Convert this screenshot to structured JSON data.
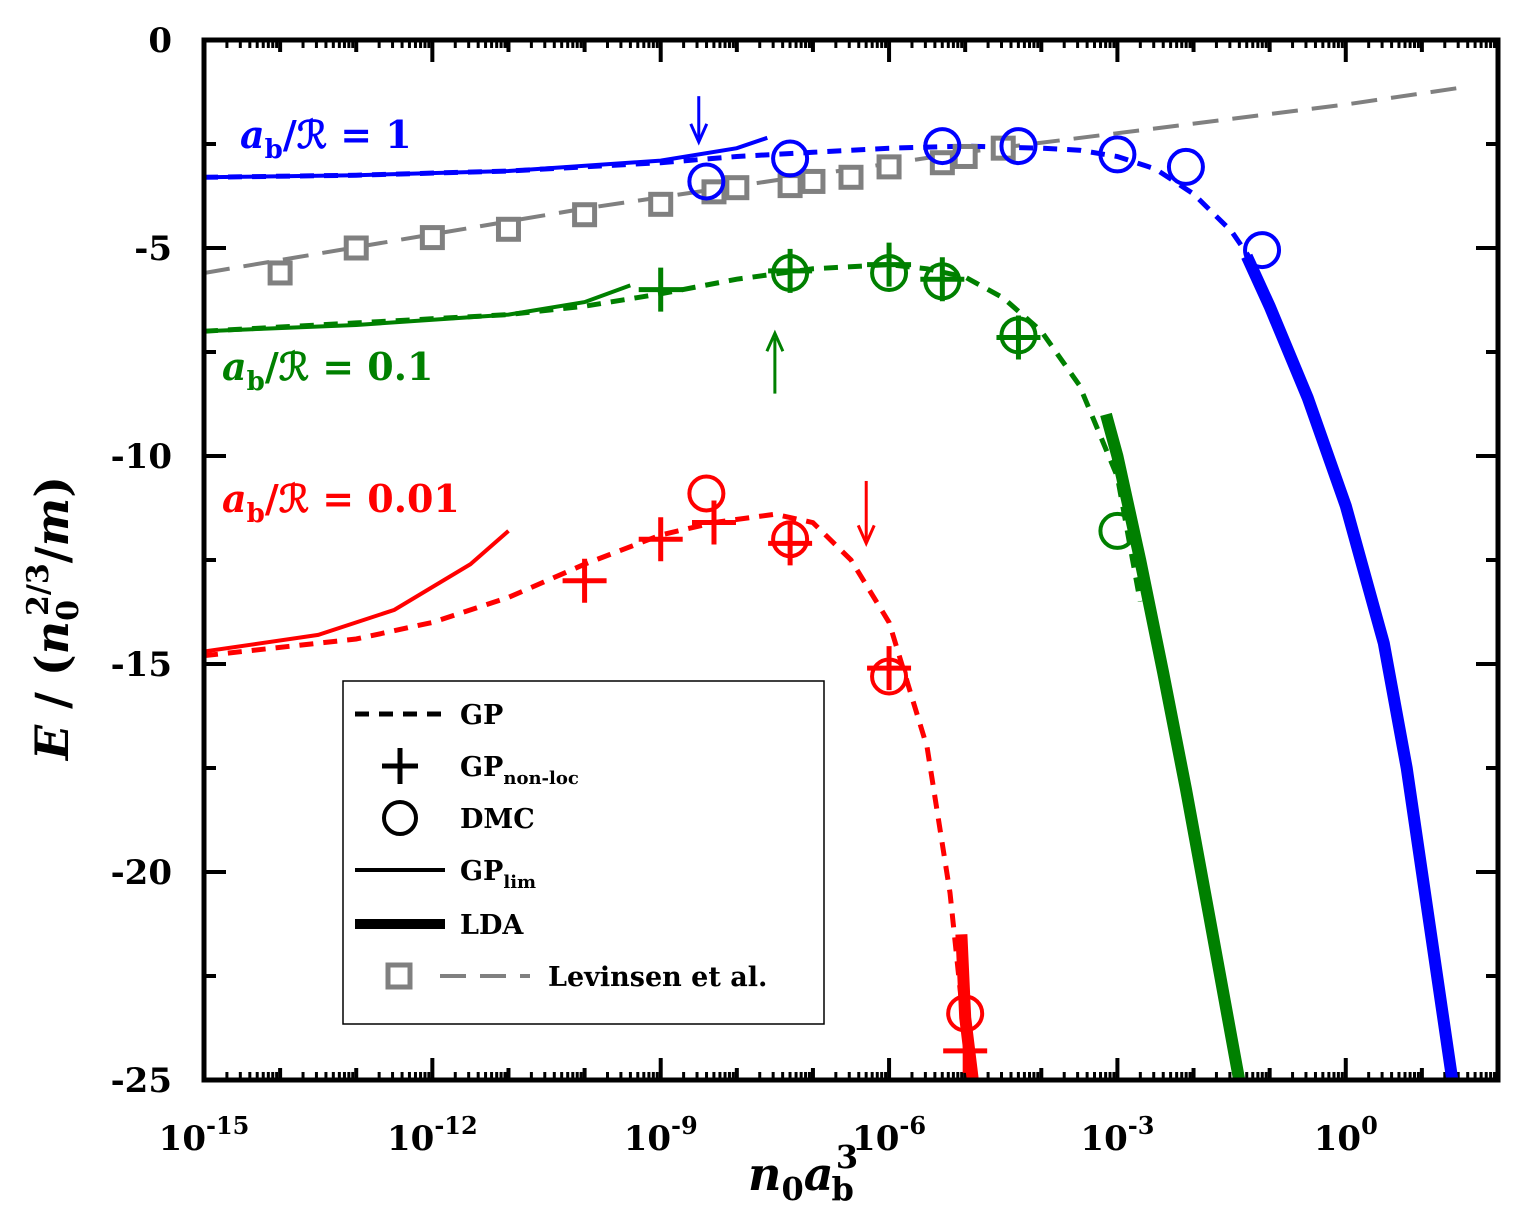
{
  "chart_data": {
    "type": "line",
    "xscale": "log",
    "xlim": [
      1e-15,
      100
    ],
    "ylim": [
      -25,
      0
    ],
    "xlabel": "n0 ab^3",
    "ylabel": "E / (n0^(2/3)/m)",
    "x_ticks": [
      {
        "base": "10",
        "exp": "-15",
        "value": 1e-15
      },
      {
        "base": "10",
        "exp": "-12",
        "value": 1e-12
      },
      {
        "base": "10",
        "exp": "-9",
        "value": 1e-09
      },
      {
        "base": "10",
        "exp": "-6",
        "value": 1e-06
      },
      {
        "base": "10",
        "exp": "-3",
        "value": 0.001
      },
      {
        "base": "10",
        "exp": "0",
        "value": 1
      }
    ],
    "y_ticks": [
      {
        "label": "0",
        "value": 0
      },
      {
        "label": "-5",
        "value": -5
      },
      {
        "label": "-10",
        "value": -10
      },
      {
        "label": "-15",
        "value": -15
      },
      {
        "label": "-20",
        "value": -20
      },
      {
        "label": "-25",
        "value": -25
      }
    ],
    "series_labels": [
      {
        "prefix": "a",
        "sub": "b",
        "rest": "/ℛ = 1",
        "color": "#0000ff"
      },
      {
        "prefix": "a",
        "sub": "b",
        "rest": "/ℛ = 0.1",
        "color": "#008000"
      },
      {
        "prefix": "a",
        "sub": "b",
        "rest": "/ℛ = 0.01",
        "color": "#ff0000"
      }
    ],
    "groups": [
      {
        "color": "#0000ff",
        "gp": [
          [
            -15,
            -3.3
          ],
          [
            -13,
            -3.25
          ],
          [
            -11,
            -3.15
          ],
          [
            -9,
            -2.95
          ],
          [
            -8,
            -2.8
          ],
          [
            -7,
            -2.7
          ],
          [
            -6,
            -2.6
          ],
          [
            -5,
            -2.55
          ],
          [
            -4,
            -2.6
          ],
          [
            -3.5,
            -2.65
          ],
          [
            -3,
            -2.8
          ],
          [
            -2.5,
            -3.1
          ],
          [
            -2,
            -3.7
          ],
          [
            -1.5,
            -4.6
          ],
          [
            -1.2,
            -5.4
          ]
        ],
        "gp_lim": [
          [
            -15,
            -3.3
          ],
          [
            -13,
            -3.25
          ],
          [
            -11,
            -3.15
          ],
          [
            -9,
            -2.9
          ],
          [
            -8,
            -2.6
          ],
          [
            -7.6,
            -2.35
          ]
        ],
        "lda": [
          [
            -1.3,
            -5.2
          ],
          [
            -1,
            -6.4
          ],
          [
            -0.5,
            -8.6
          ],
          [
            0,
            -11.2
          ],
          [
            0.5,
            -14.5
          ],
          [
            0.8,
            -17.5
          ],
          [
            1,
            -20
          ],
          [
            1.2,
            -22.5
          ],
          [
            1.4,
            -25
          ]
        ],
        "dmc": [
          [
            -8.4,
            -3.4
          ],
          [
            -7.3,
            -2.85
          ],
          [
            -5.3,
            -2.55
          ],
          [
            -4.3,
            -2.55
          ],
          [
            -3,
            -2.75
          ],
          [
            -2.1,
            -3.05
          ],
          [
            -1.1,
            -5.05
          ]
        ],
        "gp_nonloc": [],
        "arrow": {
          "x": -8.5,
          "y_from": -1.35,
          "y_to": -2.45
        }
      },
      {
        "color": "#008000",
        "gp": [
          [
            -15,
            -7
          ],
          [
            -13,
            -6.8
          ],
          [
            -11,
            -6.6
          ],
          [
            -10,
            -6.4
          ],
          [
            -9,
            -6.1
          ],
          [
            -8,
            -5.75
          ],
          [
            -7,
            -5.5
          ],
          [
            -6,
            -5.4
          ],
          [
            -5.5,
            -5.5
          ],
          [
            -5,
            -5.7
          ],
          [
            -4.5,
            -6.2
          ],
          [
            -4,
            -7
          ],
          [
            -3.5,
            -8.3
          ],
          [
            -3,
            -10.5
          ],
          [
            -2.8,
            -12.5
          ],
          [
            -2.7,
            -13.5
          ]
        ],
        "gp_lim": [
          [
            -15,
            -7
          ],
          [
            -13,
            -6.85
          ],
          [
            -11,
            -6.6
          ],
          [
            -10,
            -6.3
          ],
          [
            -9.4,
            -5.9
          ]
        ],
        "lda": [
          [
            -3.15,
            -9
          ],
          [
            -3,
            -10
          ],
          [
            -2.7,
            -12.5
          ],
          [
            -2.4,
            -15.2
          ],
          [
            -2.1,
            -18
          ],
          [
            -1.8,
            -21
          ],
          [
            -1.5,
            -24
          ],
          [
            -1.4,
            -25
          ]
        ],
        "dmc": [
          [
            -7.3,
            -5.6
          ],
          [
            -6,
            -5.6
          ],
          [
            -5.3,
            -5.8
          ],
          [
            -4.3,
            -7.1
          ],
          [
            -3,
            -11.8
          ]
        ],
        "gp_nonloc": [
          [
            -9,
            -6
          ],
          [
            -7.3,
            -5.55
          ],
          [
            -6,
            -5.4
          ],
          [
            -5.3,
            -5.75
          ],
          [
            -4.3,
            -7.15
          ]
        ],
        "arrow": {
          "x": -7.5,
          "y_from": -8.5,
          "y_to": -7.05
        }
      },
      {
        "color": "#ff0000",
        "gp": [
          [
            -15,
            -14.8
          ],
          [
            -13,
            -14.4
          ],
          [
            -12,
            -14
          ],
          [
            -11,
            -13.4
          ],
          [
            -10,
            -12.6
          ],
          [
            -9,
            -11.9
          ],
          [
            -8.3,
            -11.6
          ],
          [
            -7.5,
            -11.4
          ],
          [
            -7,
            -11.6
          ],
          [
            -6.5,
            -12.5
          ],
          [
            -6,
            -14
          ],
          [
            -5.5,
            -17
          ],
          [
            -5.2,
            -20.5
          ],
          [
            -5,
            -24
          ]
        ],
        "gp_lim": [
          [
            -15,
            -14.7
          ],
          [
            -13.5,
            -14.3
          ],
          [
            -12.5,
            -13.7
          ],
          [
            -11.5,
            -12.6
          ],
          [
            -11,
            -11.8
          ]
        ],
        "lda": [
          [
            -5.05,
            -21.5
          ],
          [
            -5,
            -23.5
          ],
          [
            -4.9,
            -25
          ]
        ],
        "dmc": [
          [
            -8.4,
            -10.9
          ],
          [
            -7.3,
            -12
          ],
          [
            -6,
            -15.3
          ],
          [
            -5,
            -23.4
          ]
        ],
        "gp_nonloc": [
          [
            -10,
            -13
          ],
          [
            -9,
            -12
          ],
          [
            -8.3,
            -11.6
          ],
          [
            -7.3,
            -12.1
          ],
          [
            -6,
            -15.1
          ],
          [
            -5,
            -24.3
          ]
        ],
        "arrow": {
          "x": -6.3,
          "y_from": -10.6,
          "y_to": -12.1
        }
      }
    ],
    "levinsen": {
      "color": "#808080",
      "line": [
        [
          -15,
          -5.6
        ],
        [
          -10,
          -4.05
        ],
        [
          -5,
          -2.7
        ],
        [
          0,
          -1.55
        ],
        [
          1.5,
          -1.15
        ]
      ],
      "points": [
        [
          -14,
          -5.6
        ],
        [
          -13,
          -5
        ],
        [
          -12,
          -4.75
        ],
        [
          -11,
          -4.55
        ],
        [
          -10,
          -4.2
        ],
        [
          -9,
          -3.95
        ],
        [
          -8.3,
          -3.65
        ],
        [
          -8,
          -3.55
        ],
        [
          -7.3,
          -3.5
        ],
        [
          -7,
          -3.4
        ],
        [
          -6.5,
          -3.3
        ],
        [
          -6,
          -3.05
        ],
        [
          -5.3,
          -2.95
        ],
        [
          -5,
          -2.8
        ],
        [
          -4.5,
          -2.6
        ]
      ]
    },
    "legend": {
      "position": "lower-left",
      "entries": [
        {
          "main": "GP",
          "sub": ""
        },
        {
          "main": "GP",
          "sub": "non-loc"
        },
        {
          "main": "DMC",
          "sub": ""
        },
        {
          "main": "GP",
          "sub": "lim"
        },
        {
          "main": "LDA",
          "sub": ""
        },
        {
          "main": "Levinsen et al.",
          "sub": ""
        }
      ]
    }
  }
}
